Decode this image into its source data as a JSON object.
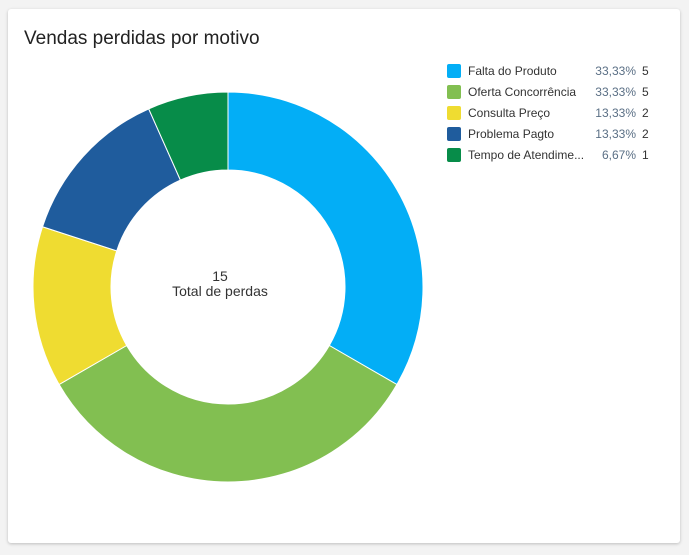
{
  "card": {
    "title": "Vendas perdidas por motivo"
  },
  "chart_data": {
    "type": "pie",
    "donut": true,
    "title": "Vendas perdidas por motivo",
    "center": {
      "value": "15",
      "label": "Total de perdas"
    },
    "legend_position": "top-right",
    "slices": [
      {
        "label": "Falta do Produto",
        "percent": "33,33%",
        "value": 5,
        "color": "#03aef6"
      },
      {
        "label": "Oferta Concorrência",
        "percent": "33,33%",
        "value": 5,
        "color": "#82bf51"
      },
      {
        "label": "Consulta Preço",
        "percent": "13,33%",
        "value": 2,
        "color": "#efdc31"
      },
      {
        "label": "Problema Pagto",
        "percent": "13,33%",
        "value": 2,
        "color": "#1f5c9d"
      },
      {
        "label": "Tempo de Atendime...",
        "percent": "6,67%",
        "value": 1,
        "color": "#078c49"
      }
    ]
  }
}
